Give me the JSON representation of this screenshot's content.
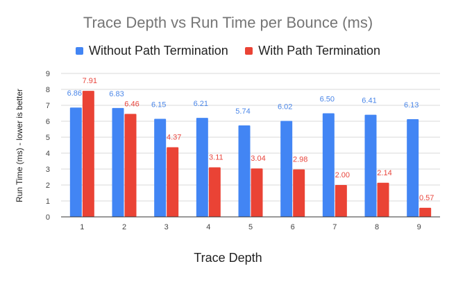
{
  "chart_data": {
    "type": "bar",
    "title": "Trace Depth vs Run Time per Bounce (ms)",
    "xlabel": "Trace Depth",
    "ylabel": "Run Time (ms) - lower is better",
    "ylim": [
      0,
      9
    ],
    "yticks": [
      0,
      1,
      2,
      3,
      4,
      5,
      6,
      7,
      8,
      9
    ],
    "categories": [
      "1",
      "2",
      "3",
      "4",
      "5",
      "6",
      "7",
      "8",
      "9"
    ],
    "grid": true,
    "legend_position": "top",
    "series": [
      {
        "name": "Without Path Termination",
        "color": "#4285f4",
        "label_color": "#4a86e8",
        "values": [
          6.86,
          6.83,
          6.15,
          6.21,
          5.74,
          6.02,
          6.5,
          6.41,
          6.13
        ],
        "labels": [
          "6.86",
          "6.83",
          "6.15",
          "6.21",
          "5.74",
          "6.02",
          "6.50",
          "6.41",
          "6.13"
        ]
      },
      {
        "name": "With Path Termination",
        "color": "#ea4335",
        "label_color": "#e8453c",
        "values": [
          7.91,
          6.46,
          4.37,
          3.11,
          3.04,
          2.98,
          2.0,
          2.14,
          0.57
        ],
        "labels": [
          "7.91",
          "6.46",
          "4.37",
          "3.11",
          "3.04",
          "2.98",
          "2.00",
          "2.14",
          "0.57"
        ]
      }
    ]
  }
}
